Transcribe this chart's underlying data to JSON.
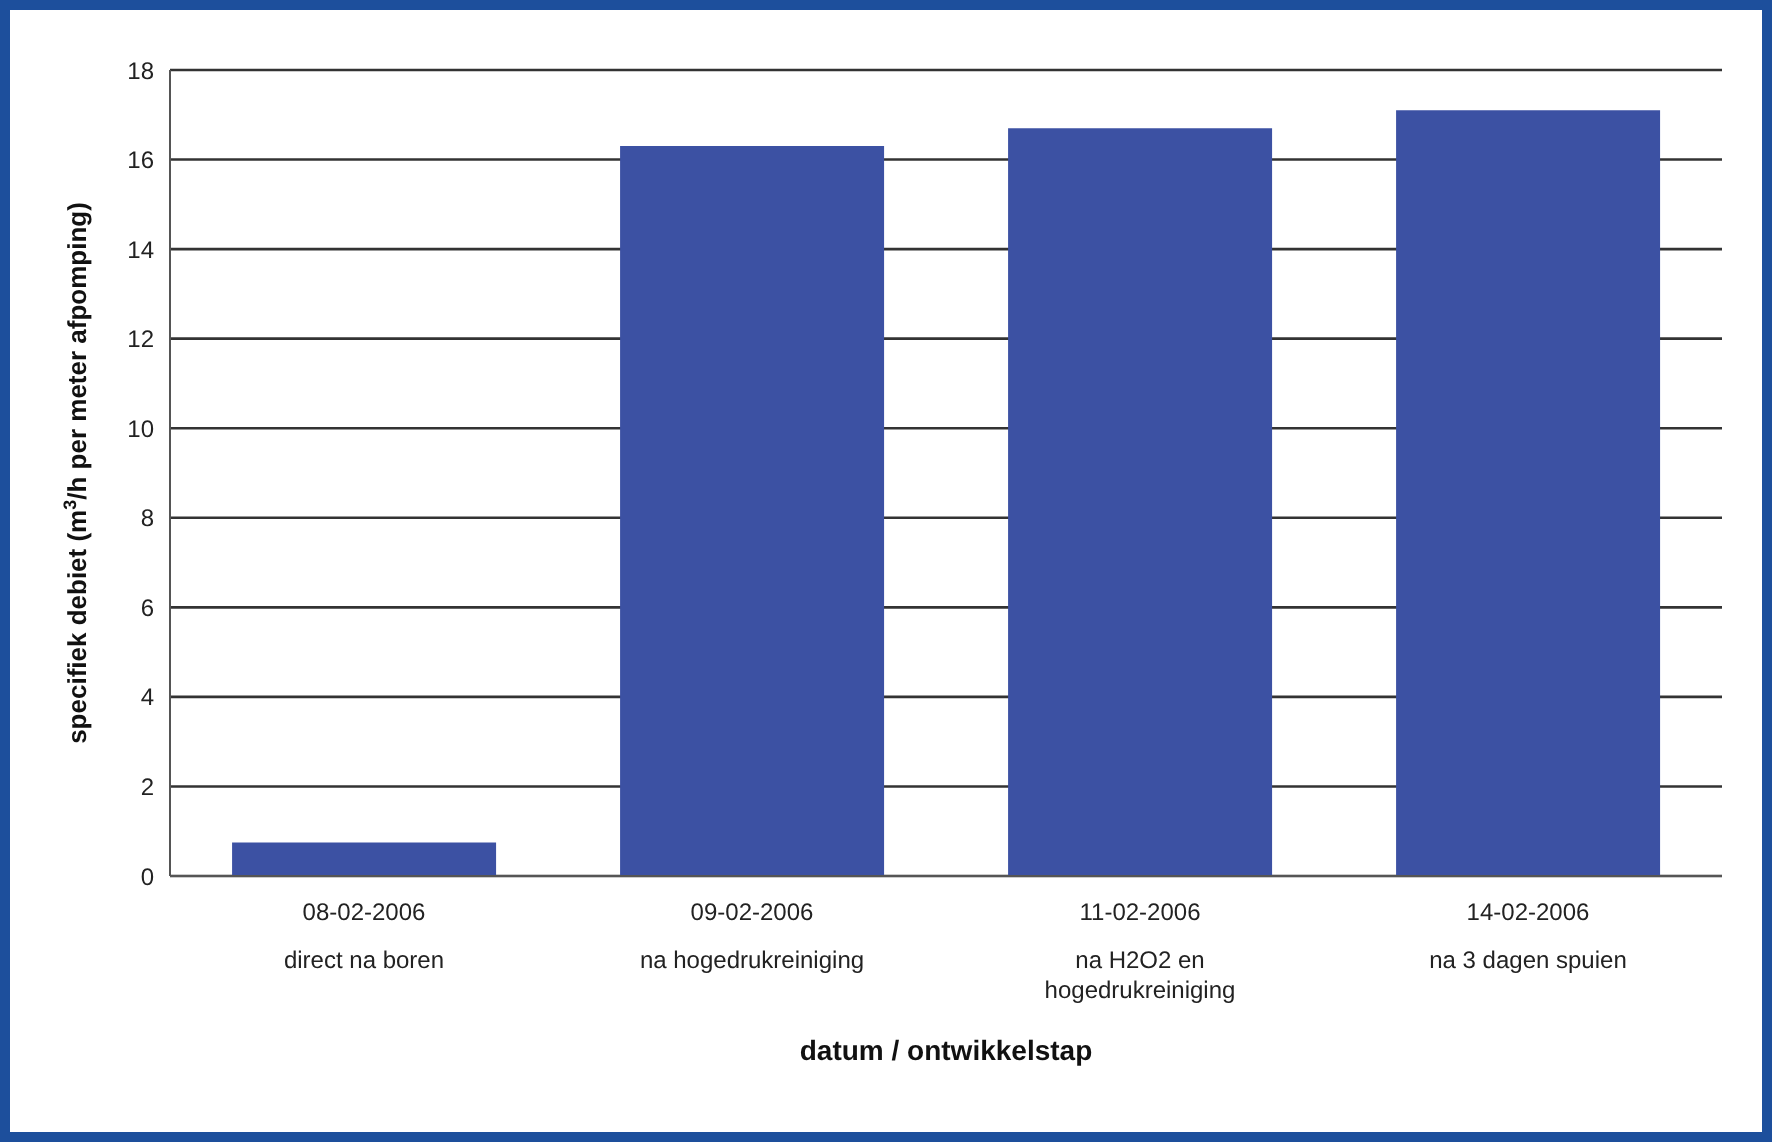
{
  "chart_data": {
    "type": "bar",
    "categories": [
      "08-02-2006\ndirect na boren",
      "09-02-2006\nna hogedrukreiniging",
      "11-02-2006\nna H2O2 en\nhogedrukreiniging",
      "14-02-2006\nna 3 dagen spuien"
    ],
    "values": [
      0.75,
      16.3,
      16.7,
      17.1
    ],
    "color": "#3c51a3",
    "xlabel": "datum / ontwikkelstap",
    "ylabel": "specifiek debiet (m$^{3}$/h per meter afpomping)",
    "ylim": [
      0,
      18
    ],
    "yticks": [
      0,
      2,
      4,
      6,
      8,
      10,
      12,
      14,
      16,
      18
    ],
    "grid": "y",
    "legend": false
  }
}
